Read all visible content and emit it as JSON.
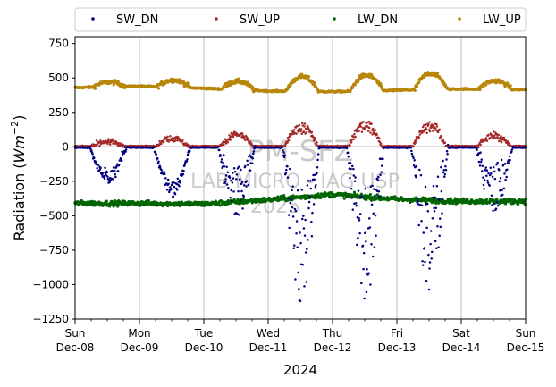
{
  "chart_data": {
    "type": "scatter",
    "ylabel_main": "Radiation (",
    "ylabel_unit_base": "Wm",
    "ylabel_unit_exp": "−2",
    "ylabel_close": ")",
    "xlabel": "2024",
    "ylim": [
      -1250,
      800
    ],
    "yticks": [
      750,
      500,
      250,
      0,
      -250,
      -500,
      -750,
      -1000,
      -1250
    ],
    "ytick_labels": [
      "750",
      "500",
      "250",
      "0",
      "−250",
      "−500",
      "−750",
      "−1000",
      "−1250"
    ],
    "xlim_days": [
      0,
      7
    ],
    "xticks": [
      {
        "day": 0,
        "weekday": "Sun",
        "date": "Dec-08"
      },
      {
        "day": 1,
        "weekday": "Mon",
        "date": "Dec-09"
      },
      {
        "day": 2,
        "weekday": "Tue",
        "date": "Dec-10"
      },
      {
        "day": 3,
        "weekday": "Wed",
        "date": "Dec-11"
      },
      {
        "day": 4,
        "weekday": "Thu",
        "date": "Dec-12"
      },
      {
        "day": 5,
        "weekday": "Fri",
        "date": "Dec-13"
      },
      {
        "day": 6,
        "weekday": "Sat",
        "date": "Dec-14"
      },
      {
        "day": 7,
        "weekday": "Sun",
        "date": "Dec-15"
      }
    ],
    "grid": "vertical",
    "legend_position": "top-outside",
    "watermark": {
      "line1": "PM-SFZ",
      "line2": "LAB MICRO - IAG USP",
      "line3": "2025"
    },
    "series": [
      {
        "name": "SW_DN",
        "color": "#000080",
        "daily_min": [
          -260,
          -360,
          -520,
          -1150,
          -1180,
          -1050,
          -500
        ],
        "night_level": -5
      },
      {
        "name": "SW_UP",
        "color": "#a52a2a",
        "daily_max": [
          45,
          80,
          110,
          180,
          200,
          190,
          100
        ],
        "night_level": 5
      },
      {
        "name": "LW_DN",
        "color": "#006400",
        "daily_baseline": [
          -410,
          -410,
          -415,
          -385,
          -345,
          -380,
          -395
        ],
        "x_start": 0,
        "x_end": 7
      },
      {
        "name": "LW_UP",
        "color": "#b8860b",
        "night_baseline": [
          430,
          440,
          425,
          405,
          400,
          410,
          420,
          415
        ],
        "daily_peak": [
          470,
          485,
          475,
          510,
          520,
          535,
          480
        ]
      }
    ]
  }
}
